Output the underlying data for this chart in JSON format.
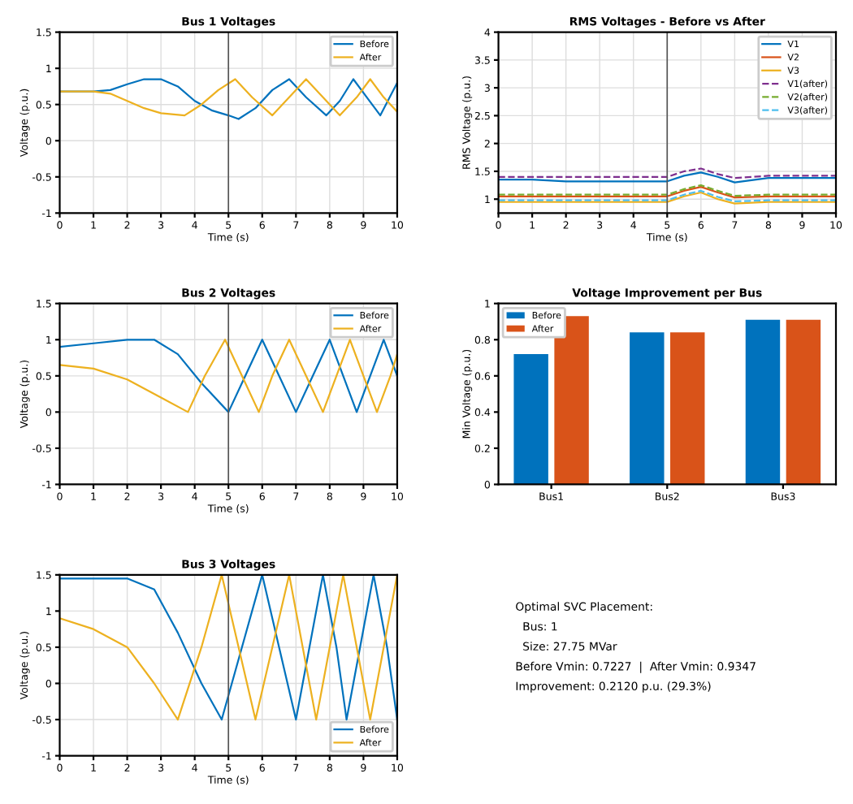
{
  "chart_data": [
    {
      "type": "line",
      "title": "Bus 1 Voltages",
      "xlabel": "Time (s)",
      "ylabel": "Voltage (p.u.)",
      "xlim": [
        0,
        10
      ],
      "xticks": [
        0,
        1,
        2,
        3,
        4,
        5,
        6,
        7,
        8,
        9,
        10
      ],
      "ylim": [
        -1,
        1.5
      ],
      "yticks": [
        -1,
        -0.5,
        0,
        0.5,
        1,
        1.5
      ],
      "grid": true,
      "legend": "top right",
      "ref_lines": [
        {
          "axis": "x",
          "value": 5,
          "color": "#555555"
        }
      ],
      "series": [
        {
          "name": "Before",
          "color": "#0072bd",
          "x": [
            0,
            1,
            1.5,
            2,
            2.5,
            3,
            3.5,
            4,
            4.5,
            5,
            5.3,
            5.8,
            6.3,
            6.8,
            7.3,
            7.9,
            8.3,
            8.7,
            9.1,
            9.5,
            10
          ],
          "values": [
            0.68,
            0.68,
            0.7,
            0.78,
            0.85,
            0.85,
            0.75,
            0.55,
            0.42,
            0.35,
            0.3,
            0.45,
            0.7,
            0.85,
            0.6,
            0.35,
            0.55,
            0.85,
            0.6,
            0.35,
            0.8
          ]
        },
        {
          "name": "After",
          "color": "#edb120",
          "x": [
            0,
            1,
            1.5,
            2,
            2.5,
            3,
            3.7,
            4.2,
            4.7,
            5.2,
            5.7,
            6.3,
            6.8,
            7.3,
            7.8,
            8.3,
            8.8,
            9.2,
            9.6,
            10
          ],
          "values": [
            0.68,
            0.68,
            0.65,
            0.55,
            0.45,
            0.38,
            0.35,
            0.5,
            0.7,
            0.85,
            0.6,
            0.35,
            0.6,
            0.85,
            0.6,
            0.35,
            0.6,
            0.85,
            0.6,
            0.4
          ]
        }
      ]
    },
    {
      "type": "line",
      "title": "RMS Voltages - Before vs After",
      "xlabel": "Time (s)",
      "ylabel": "RMS Voltage (p.u.)",
      "xlim": [
        0,
        10
      ],
      "xticks": [
        0,
        1,
        2,
        3,
        4,
        5,
        6,
        7,
        8,
        9,
        10
      ],
      "ylim": [
        0.75,
        4
      ],
      "yticks": [
        1,
        1.5,
        2,
        2.5,
        3,
        3.5,
        4
      ],
      "grid": true,
      "legend": "top right",
      "ref_lines": [
        {
          "axis": "x",
          "value": 5,
          "color": "#555555"
        }
      ],
      "series": [
        {
          "name": "V1",
          "color": "#0072bd",
          "x": [
            0,
            1,
            2,
            3,
            4,
            5,
            5.5,
            6,
            6.5,
            7,
            8,
            9,
            10
          ],
          "values": [
            1.35,
            1.35,
            1.32,
            1.32,
            1.32,
            1.32,
            1.42,
            1.48,
            1.4,
            1.3,
            1.38,
            1.38,
            1.38
          ]
        },
        {
          "name": "V2",
          "color": "#d95319",
          "x": [
            0,
            1,
            2,
            3,
            4,
            5,
            5.5,
            6,
            6.5,
            7,
            8,
            9,
            10
          ],
          "values": [
            1.05,
            1.05,
            1.05,
            1.05,
            1.05,
            1.05,
            1.15,
            1.22,
            1.12,
            1.03,
            1.05,
            1.05,
            1.05
          ]
        },
        {
          "name": "V3",
          "color": "#edb120",
          "x": [
            0,
            1,
            2,
            3,
            4,
            5,
            5.5,
            6,
            6.5,
            7,
            8,
            9,
            10
          ],
          "values": [
            0.95,
            0.95,
            0.95,
            0.95,
            0.95,
            0.95,
            1.05,
            1.12,
            1.0,
            0.92,
            0.95,
            0.95,
            0.95
          ]
        },
        {
          "name": "V1(after)",
          "color": "#7e2f8e",
          "line_style": "dashed",
          "x": [
            0,
            1,
            2,
            3,
            4,
            5,
            5.5,
            6,
            6.5,
            7,
            8,
            9,
            10
          ],
          "values": [
            1.4,
            1.4,
            1.4,
            1.4,
            1.4,
            1.4,
            1.5,
            1.55,
            1.45,
            1.38,
            1.42,
            1.42,
            1.42
          ]
        },
        {
          "name": "V2(after)",
          "color": "#77ac30",
          "line_style": "dashed",
          "x": [
            0,
            1,
            2,
            3,
            4,
            5,
            5.5,
            6,
            6.5,
            7,
            8,
            9,
            10
          ],
          "values": [
            1.08,
            1.08,
            1.08,
            1.08,
            1.08,
            1.08,
            1.18,
            1.25,
            1.15,
            1.06,
            1.08,
            1.08,
            1.08
          ]
        },
        {
          "name": "V3(after)",
          "color": "#4dbeee",
          "line_style": "dashed",
          "x": [
            0,
            1,
            2,
            3,
            4,
            5,
            5.5,
            6,
            6.5,
            7,
            8,
            9,
            10
          ],
          "values": [
            0.98,
            0.98,
            0.98,
            0.98,
            0.98,
            0.98,
            1.08,
            1.15,
            1.04,
            0.96,
            0.98,
            0.98,
            0.98
          ]
        }
      ]
    },
    {
      "type": "line",
      "title": "Bus 2 Voltages",
      "xlabel": "Time (s)",
      "ylabel": "Voltage (p.u.)",
      "xlim": [
        0,
        10
      ],
      "xticks": [
        0,
        1,
        2,
        3,
        4,
        5,
        6,
        7,
        8,
        9,
        10
      ],
      "ylim": [
        -1,
        1.5
      ],
      "yticks": [
        -1,
        -0.5,
        0,
        0.5,
        1,
        1.5
      ],
      "grid": true,
      "legend": "top right",
      "ref_lines": [
        {
          "axis": "x",
          "value": 5,
          "color": "#555555"
        }
      ],
      "series": [
        {
          "name": "Before",
          "color": "#0072bd",
          "x": [
            0,
            1,
            2,
            2.8,
            3.5,
            4.2,
            5,
            5.5,
            6,
            6.5,
            7,
            7.5,
            8,
            8.4,
            8.8,
            9.2,
            9.6,
            10
          ],
          "values": [
            0.9,
            0.95,
            1.0,
            1.0,
            0.8,
            0.4,
            0.0,
            0.5,
            1.0,
            0.5,
            0.0,
            0.5,
            1.0,
            0.5,
            0.0,
            0.5,
            1.0,
            0.5
          ]
        },
        {
          "name": "After",
          "color": "#edb120",
          "x": [
            0,
            1,
            2,
            3,
            3.8,
            4.3,
            4.9,
            5.4,
            5.9,
            6.3,
            6.8,
            7.3,
            7.8,
            8.2,
            8.6,
            9,
            9.4,
            9.8,
            10
          ],
          "values": [
            0.65,
            0.6,
            0.45,
            0.2,
            0.0,
            0.5,
            1.0,
            0.5,
            0.0,
            0.5,
            1.0,
            0.5,
            0.0,
            0.5,
            1.0,
            0.5,
            0.0,
            0.5,
            0.8
          ]
        }
      ]
    },
    {
      "type": "bar",
      "title": "Voltage Improvement per Bus",
      "ylabel": "Min Voltage (p.u.)",
      "categories": [
        "Bus1",
        "Bus2",
        "Bus3"
      ],
      "ylim": [
        0,
        1
      ],
      "yticks": [
        0,
        0.2,
        0.4,
        0.6,
        0.8,
        1
      ],
      "legend": "top left",
      "series": [
        {
          "name": "Before",
          "color": "#0072bd",
          "values": [
            0.72,
            0.84,
            0.91
          ]
        },
        {
          "name": "After",
          "color": "#d95319",
          "values": [
            0.93,
            0.84,
            0.91
          ]
        }
      ]
    },
    {
      "type": "line",
      "title": "Bus 3 Voltages",
      "xlabel": "Time (s)",
      "ylabel": "Voltage (p.u.)",
      "xlim": [
        0,
        10
      ],
      "xticks": [
        0,
        1,
        2,
        3,
        4,
        5,
        6,
        7,
        8,
        9,
        10
      ],
      "ylim": [
        -1,
        1.5
      ],
      "yticks": [
        -1,
        -0.5,
        0,
        0.5,
        1,
        1.5
      ],
      "grid": true,
      "legend": "bottom right",
      "ref_lines": [
        {
          "axis": "x",
          "value": 5,
          "color": "#555555"
        }
      ],
      "series": [
        {
          "name": "Before",
          "color": "#0072bd",
          "x": [
            0,
            1,
            2,
            2.8,
            3.5,
            4.2,
            4.8,
            5.4,
            6,
            6.5,
            7,
            7.4,
            7.8,
            8.2,
            8.5,
            8.9,
            9.3,
            9.7,
            10
          ],
          "values": [
            1.45,
            1.45,
            1.45,
            1.3,
            0.7,
            0.0,
            -0.5,
            0.5,
            1.5,
            0.5,
            -0.5,
            0.5,
            1.5,
            0.5,
            -0.5,
            0.5,
            1.5,
            0.5,
            -0.5
          ]
        },
        {
          "name": "After",
          "color": "#edb120",
          "x": [
            0,
            1,
            2,
            2.8,
            3.5,
            4.2,
            4.8,
            5.3,
            5.8,
            6.3,
            6.8,
            7.2,
            7.6,
            8,
            8.4,
            8.8,
            9.2,
            9.6,
            10
          ],
          "values": [
            0.9,
            0.75,
            0.5,
            0.0,
            -0.5,
            0.5,
            1.5,
            0.5,
            -0.5,
            0.5,
            1.5,
            0.5,
            -0.5,
            0.5,
            1.5,
            0.5,
            -0.5,
            0.5,
            1.5
          ]
        }
      ]
    },
    {
      "type": "other",
      "annotations": [
        "Optimal SVC Placement:",
        "  Bus: 1",
        "  Size: 27.75 MVar",
        "Before Vmin: 0.7227  |  After Vmin: 0.9347",
        "Improvement: 0.2120 p.u. (29.3%)"
      ]
    }
  ]
}
